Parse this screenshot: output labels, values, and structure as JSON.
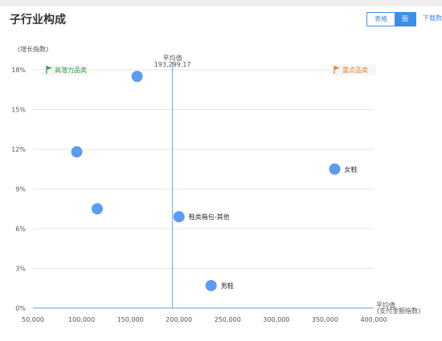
{
  "header": {
    "title": "子行业构成",
    "toggle_table": "表格",
    "toggle_chart": "图",
    "download": "下载数据"
  },
  "chart_data": {
    "type": "scatter",
    "ylabel": "(增长指数)",
    "xlabel": "(支付金额指数)",
    "xlim": [
      50000,
      400000
    ],
    "ylim": [
      0,
      18
    ],
    "x_ticks": [
      "50,000",
      "100,000",
      "150,000",
      "200,000",
      "250,000",
      "300,000",
      "350,000",
      "400,000"
    ],
    "y_ticks": [
      "0%",
      "3%",
      "6%",
      "9%",
      "12%",
      "15%",
      "18%"
    ],
    "x_tick_values": [
      50000,
      100000,
      150000,
      200000,
      250000,
      300000,
      350000,
      400000
    ],
    "y_tick_values": [
      0,
      3,
      6,
      9,
      12,
      15,
      18
    ],
    "average_x": {
      "label": "平均值",
      "value_text": "193,299.17",
      "value": 193299.17
    },
    "average_y": {
      "label": "平均值",
      "value": 0
    },
    "quadrant_labels": {
      "top_left": {
        "text": "高潜力品类",
        "color": "#3aa14a"
      },
      "top_right": {
        "text": "重点品类",
        "color": "#e8822b"
      }
    },
    "points": [
      {
        "x": 157000,
        "y": 17.5,
        "label": ""
      },
      {
        "x": 95000,
        "y": 11.8,
        "label": ""
      },
      {
        "x": 116000,
        "y": 7.5,
        "label": ""
      },
      {
        "x": 200000,
        "y": 6.9,
        "label": "鞋类箱包-其他"
      },
      {
        "x": 233000,
        "y": 1.7,
        "label": "男鞋"
      },
      {
        "x": 360000,
        "y": 10.5,
        "label": "女鞋"
      }
    ],
    "point_color": "#5b9bf0",
    "avg_line_color": "#7fb0e0",
    "grid": true
  }
}
